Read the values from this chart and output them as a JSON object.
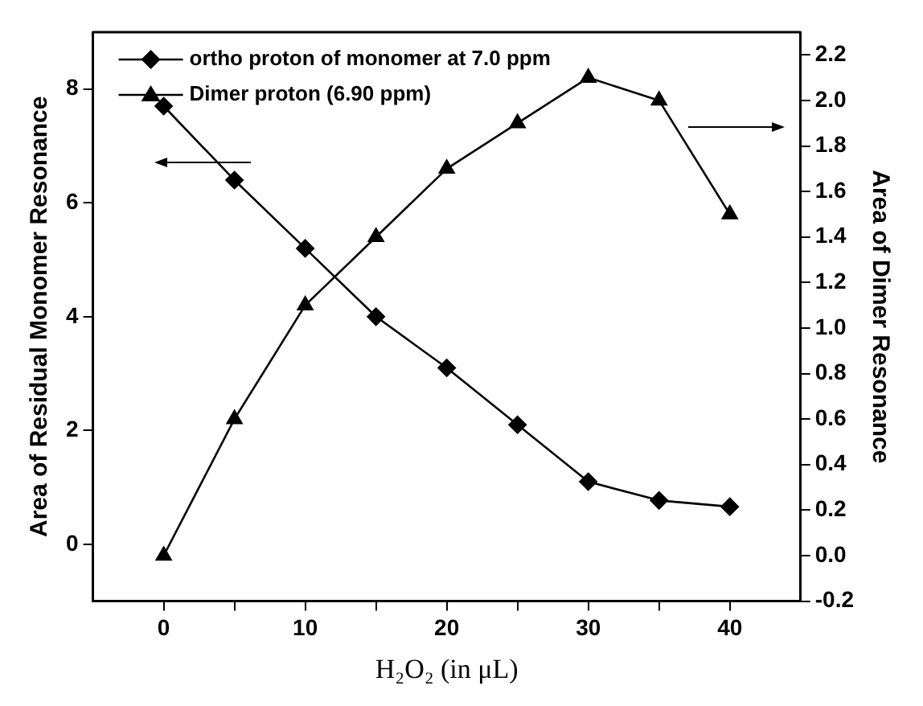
{
  "chart_data": {
    "type": "line",
    "xlabel": "H₂O₂ (in μL)",
    "ylabel": "Area of Residual Monomer Resonance",
    "y2label": "Area of Dimer Resonance",
    "x": [
      0,
      5,
      10,
      15,
      20,
      25,
      30,
      35,
      40
    ],
    "xlim": [
      -5,
      45
    ],
    "xticks": [
      0,
      {
        "value": 5,
        "label": null
      },
      10,
      {
        "value": 15,
        "label": null
      },
      20,
      {
        "value": 25,
        "label": null
      },
      30,
      {
        "value": 35,
        "label": null
      },
      40
    ],
    "ylim": [
      -1,
      9
    ],
    "yticks": [
      0,
      2,
      4,
      6,
      8
    ],
    "y2lim": [
      -0.2,
      2.3
    ],
    "y2ticks": [
      -0.2,
      {
        "value": 0,
        "label": "0.0"
      },
      0.2,
      0.4,
      0.6,
      0.8,
      {
        "value": 1,
        "label": "1.0"
      },
      1.2,
      1.4,
      1.6,
      1.8,
      {
        "value": 2,
        "label": "2.0"
      },
      2.2
    ],
    "series": [
      {
        "name": "ortho proton of monomer at 7.0 ppm",
        "color": "#000000",
        "marker": "diamond",
        "values": [
          7.7,
          6.4,
          5.2,
          4.0,
          3.1,
          2.1,
          1.1,
          0.77,
          0.66
        ]
      },
      {
        "name": "Dimer proton (6.90 ppm)",
        "color": "#000000",
        "marker": "triangle",
        "axis": "y2",
        "values": [
          0.0,
          0.6,
          1.1,
          1.4,
          1.7,
          1.9,
          2.1,
          2.0,
          1.5
        ]
      }
    ],
    "grid": false,
    "legend": "top left",
    "line_style": "solid"
  }
}
